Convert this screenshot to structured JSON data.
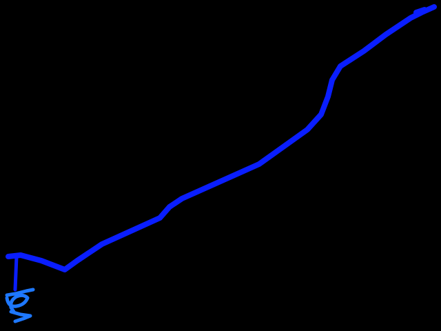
{
  "canvas": {
    "background": "#000000"
  },
  "strokes": {
    "main_path_color": "#0A1EFF",
    "end_tick_color": "#0A1EFF",
    "scribble_color": "#1E78FF"
  }
}
